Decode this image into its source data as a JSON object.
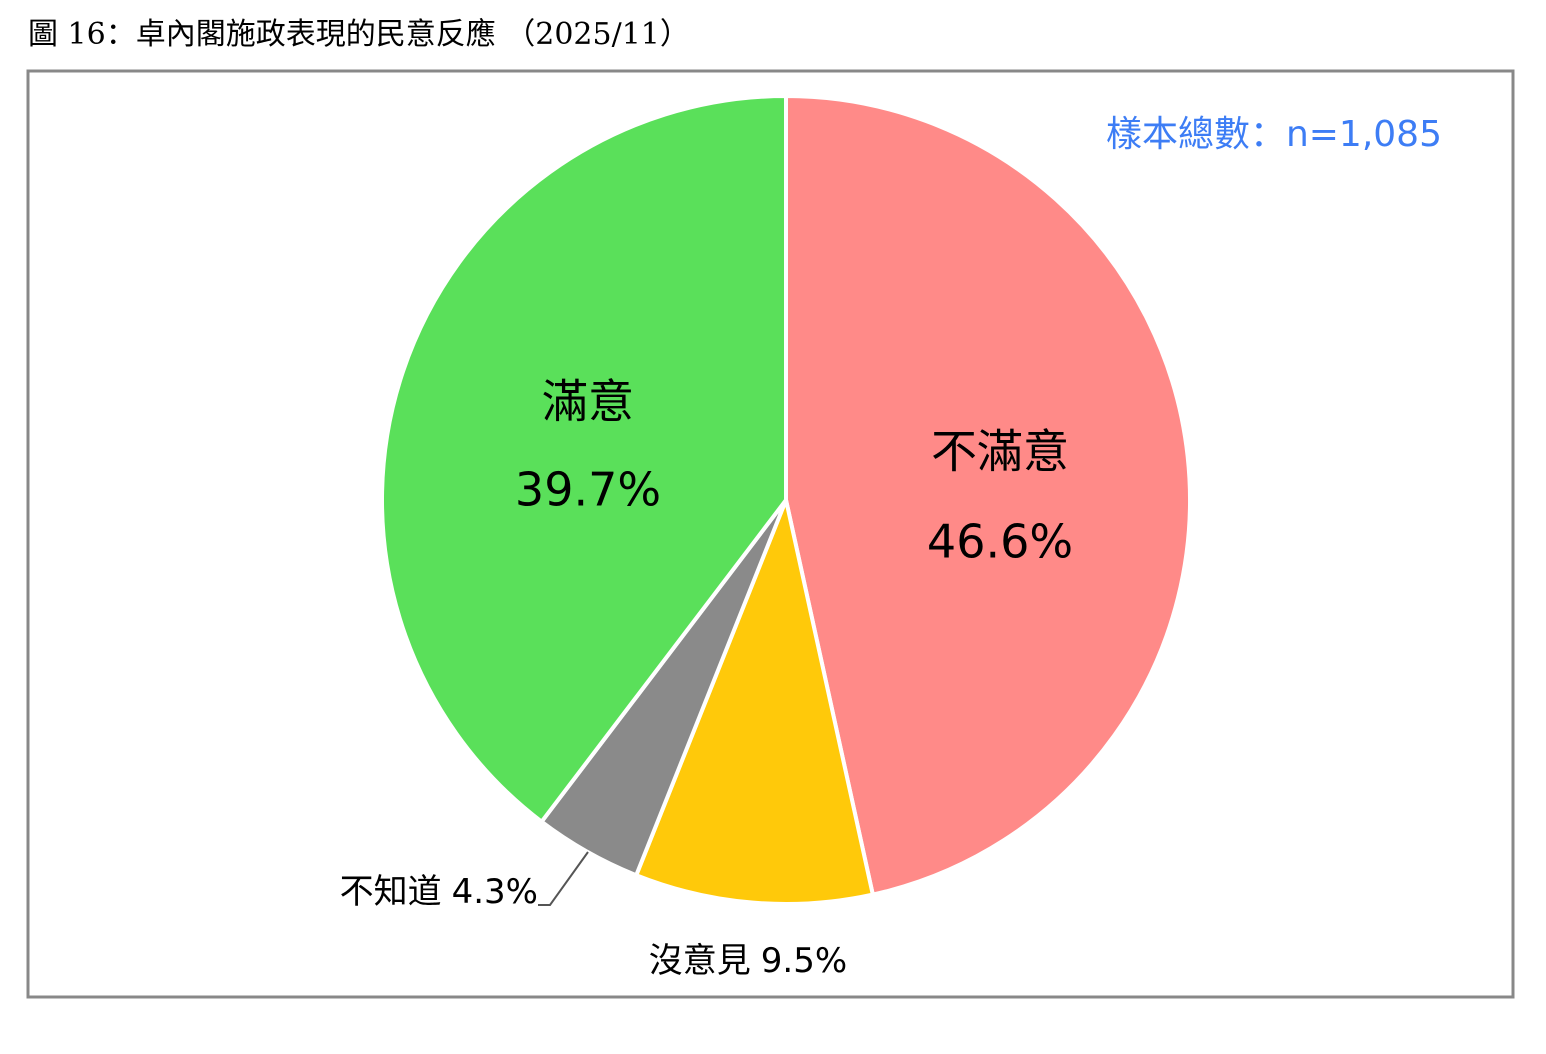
{
  "chart_data": {
    "type": "pie",
    "title": "圖 16：卓內閣施政表現的民意反應 （2025/11）",
    "annotation": "樣本總數：n=1,085",
    "categories": [
      "不滿意",
      "沒意見",
      "不知道",
      "滿意"
    ],
    "values": [
      46.6,
      9.5,
      4.3,
      39.7
    ],
    "value_labels": [
      "46.6%",
      "9.5%",
      "4.3%",
      "39.7%"
    ],
    "colors": [
      "#ff8a88",
      "#ffc90a",
      "#8a8a8a",
      "#5ae05a"
    ]
  }
}
